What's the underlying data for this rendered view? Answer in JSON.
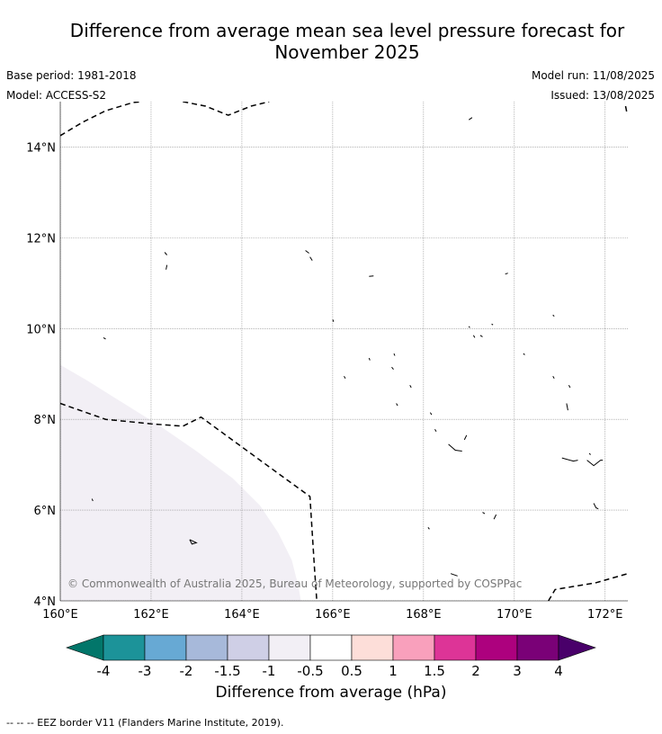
{
  "header": {
    "title_line1": "Difference from average mean sea level pressure forecast for",
    "title_line2": "November 2025",
    "base_period": "Base period: 1981-2018",
    "model": "Model: ACCESS-S2",
    "model_run": "Model run: 11/08/2025",
    "issued": "Issued: 13/08/2025"
  },
  "map": {
    "lon_range": [
      160.0,
      172.5
    ],
    "lat_range": [
      4.0,
      15.0
    ],
    "lon_ticks": [
      {
        "value": 160,
        "label": "160°E"
      },
      {
        "value": 162,
        "label": "162°E"
      },
      {
        "value": 164,
        "label": "164°E"
      },
      {
        "value": 166,
        "label": "166°E"
      },
      {
        "value": 168,
        "label": "168°E"
      },
      {
        "value": 170,
        "label": "170°E"
      },
      {
        "value": 172,
        "label": "172°E"
      }
    ],
    "lat_ticks": [
      {
        "value": 4,
        "label": "4°N"
      },
      {
        "value": 6,
        "label": "6°N"
      },
      {
        "value": 8,
        "label": "8°N"
      },
      {
        "value": 10,
        "label": "10°N"
      },
      {
        "value": 12,
        "label": "12°N"
      },
      {
        "value": 14,
        "label": "14°N"
      }
    ],
    "copyright": "© Commonwealth of Australia 2025, Bureau of Meteorology, supported by COSPPac",
    "anomaly_region": {
      "range": "-1 to -0.5",
      "color": "#f2eff5",
      "boundary": [
        [
          160.0,
          9.2
        ],
        [
          160.6,
          8.85
        ],
        [
          161.4,
          8.35
        ],
        [
          162.2,
          7.85
        ],
        [
          163.0,
          7.3
        ],
        [
          163.8,
          6.7
        ],
        [
          164.4,
          6.1
        ],
        [
          164.8,
          5.5
        ],
        [
          165.1,
          4.9
        ],
        [
          165.25,
          4.3
        ],
        [
          165.3,
          4.0
        ],
        [
          160.0,
          4.0
        ]
      ]
    },
    "eez_borders": [
      [
        [
          160.0,
          14.25
        ],
        [
          160.5,
          14.55
        ],
        [
          161.0,
          14.8
        ],
        [
          161.6,
          14.98
        ],
        [
          161.8,
          15.0
        ]
      ],
      [
        [
          162.7,
          15.0
        ],
        [
          163.2,
          14.9
        ],
        [
          163.7,
          14.7
        ],
        [
          164.2,
          14.9
        ],
        [
          164.6,
          15.0
        ]
      ],
      [
        [
          160.0,
          8.35
        ],
        [
          161.0,
          8.0
        ],
        [
          162.0,
          7.9
        ],
        [
          162.7,
          7.85
        ],
        [
          163.1,
          8.05
        ],
        [
          164.4,
          7.1
        ],
        [
          165.5,
          6.3
        ],
        [
          165.6,
          4.7
        ],
        [
          165.65,
          4.0
        ]
      ],
      [
        [
          170.75,
          4.0
        ],
        [
          170.9,
          4.25
        ],
        [
          171.8,
          4.4
        ],
        [
          172.5,
          4.6
        ]
      ],
      [
        [
          172.45,
          14.9
        ],
        [
          172.48,
          14.75
        ]
      ]
    ],
    "islands": [
      [
        [
          162.3,
          11.68
        ],
        [
          162.35,
          11.62
        ]
      ],
      [
        [
          162.35,
          11.4
        ],
        [
          162.33,
          11.3
        ]
      ],
      [
        [
          165.4,
          11.72
        ],
        [
          165.48,
          11.66
        ]
      ],
      [
        [
          165.5,
          11.58
        ],
        [
          165.55,
          11.5
        ]
      ],
      [
        [
          166.8,
          11.15
        ],
        [
          166.9,
          11.16
        ]
      ],
      [
        [
          169.0,
          14.6
        ],
        [
          169.07,
          14.65
        ]
      ],
      [
        [
          169.8,
          11.2
        ],
        [
          169.86,
          11.22
        ]
      ],
      [
        [
          160.95,
          9.8
        ],
        [
          161.0,
          9.77
        ]
      ],
      [
        [
          166.0,
          10.2
        ],
        [
          166.02,
          10.15
        ]
      ],
      [
        [
          169.0,
          10.05
        ],
        [
          169.02,
          10.02
        ]
      ],
      [
        [
          169.1,
          9.85
        ],
        [
          169.13,
          9.8
        ]
      ],
      [
        [
          169.25,
          9.85
        ],
        [
          169.3,
          9.82
        ]
      ],
      [
        [
          169.5,
          10.1
        ],
        [
          169.53,
          10.08
        ]
      ],
      [
        [
          170.85,
          10.3
        ],
        [
          170.88,
          10.27
        ]
      ],
      [
        [
          170.2,
          9.45
        ],
        [
          170.23,
          9.42
        ]
      ],
      [
        [
          167.35,
          9.45
        ],
        [
          167.37,
          9.4
        ]
      ],
      [
        [
          166.8,
          9.35
        ],
        [
          166.82,
          9.3
        ]
      ],
      [
        [
          167.3,
          9.15
        ],
        [
          167.34,
          9.1
        ]
      ],
      [
        [
          166.25,
          8.95
        ],
        [
          166.28,
          8.9
        ]
      ],
      [
        [
          167.7,
          8.75
        ],
        [
          167.73,
          8.7
        ]
      ],
      [
        [
          170.85,
          8.95
        ],
        [
          170.88,
          8.9
        ]
      ],
      [
        [
          171.2,
          8.75
        ],
        [
          171.23,
          8.7
        ]
      ],
      [
        [
          167.4,
          8.35
        ],
        [
          167.43,
          8.3
        ]
      ],
      [
        [
          168.15,
          8.15
        ],
        [
          168.18,
          8.1
        ]
      ],
      [
        [
          171.15,
          8.35
        ],
        [
          171.18,
          8.2
        ]
      ],
      [
        [
          168.25,
          7.78
        ],
        [
          168.28,
          7.73
        ]
      ],
      [
        [
          168.9,
          7.55
        ],
        [
          168.95,
          7.65
        ]
      ],
      [
        [
          168.55,
          7.45
        ],
        [
          168.7,
          7.32
        ],
        [
          168.85,
          7.3
        ]
      ],
      [
        [
          171.05,
          7.15
        ],
        [
          171.3,
          7.08
        ],
        [
          171.4,
          7.1
        ]
      ],
      [
        [
          171.6,
          7.1
        ],
        [
          171.75,
          6.98
        ],
        [
          171.9,
          7.1
        ],
        [
          171.95,
          7.1
        ]
      ],
      [
        [
          171.65,
          7.25
        ],
        [
          171.68,
          7.22
        ]
      ],
      [
        [
          171.75,
          6.15
        ],
        [
          171.8,
          6.05
        ],
        [
          171.85,
          6.03
        ]
      ],
      [
        [
          169.3,
          5.95
        ],
        [
          169.35,
          5.92
        ]
      ],
      [
        [
          169.55,
          5.8
        ],
        [
          169.6,
          5.9
        ]
      ],
      [
        [
          168.1,
          5.62
        ],
        [
          168.13,
          5.58
        ]
      ],
      [
        [
          160.7,
          6.25
        ],
        [
          160.72,
          6.2
        ]
      ],
      [
        [
          162.85,
          5.35
        ],
        [
          163.0,
          5.28
        ],
        [
          162.9,
          5.25
        ],
        [
          162.85,
          5.35
        ]
      ],
      [
        [
          168.6,
          4.6
        ],
        [
          168.75,
          4.55
        ]
      ]
    ]
  },
  "colorbar": {
    "title": "Difference from average (hPa)",
    "bins": [
      {
        "color": "#1c9399"
      },
      {
        "color": "#67a9d4"
      },
      {
        "color": "#a7b9da"
      },
      {
        "color": "#cfcfe6"
      },
      {
        "color": "#f2eff5"
      },
      {
        "color": "#ffffff"
      },
      {
        "color": "#fdded9"
      },
      {
        "color": "#f9a0bc"
      },
      {
        "color": "#dd3497"
      },
      {
        "color": "#ad017e"
      },
      {
        "color": "#7a0177"
      }
    ],
    "low_extend_color": "#02766a",
    "high_extend_color": "#49006a",
    "tick_labels": [
      "-4",
      "-3",
      "-2",
      "-1.5",
      "-1",
      "-0.5",
      "0.5",
      "1",
      "1.5",
      "2",
      "3",
      "4"
    ]
  },
  "footer": "--  --  -- EEZ border V11 (Flanders Marine Institute, 2019)."
}
